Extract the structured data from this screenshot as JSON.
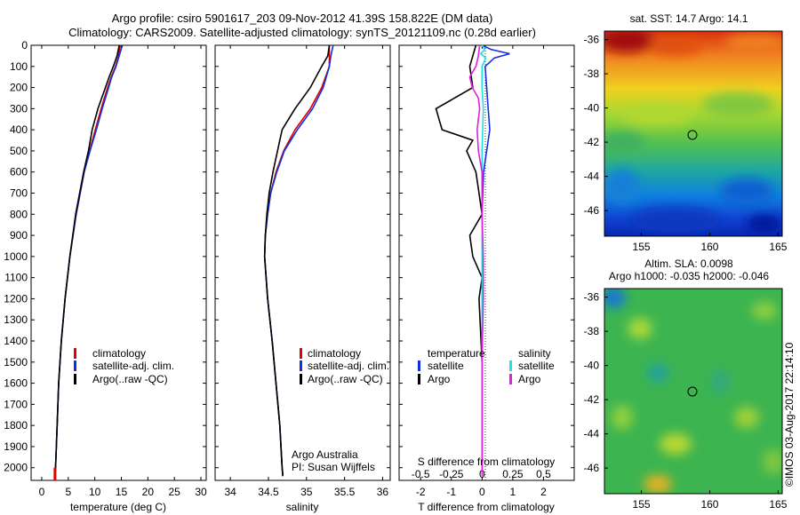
{
  "header": {
    "line1": "Argo profile: csiro 5901617_203 09-Nov-2012 41.39S 158.822E (DM data)",
    "line2": "Climatology: CARS2009. Satellite-adjusted climatology: synTS_20121109.nc (0.28d earlier)"
  },
  "colors": {
    "climatology": "#e00000",
    "satellite": "#1030e0",
    "argo": "#000000",
    "sal_satellite": "#20e0e0",
    "sal_argo": "#e020e0"
  },
  "chart_data": [
    {
      "type": "line",
      "panel": "temperature",
      "xlabel": "temperature (deg C)",
      "ylabel": "",
      "xlim": [
        -2,
        31
      ],
      "ylim": [
        2060,
        0
      ],
      "xticks": [
        "0",
        "5",
        "10",
        "15",
        "20",
        "25",
        "30"
      ],
      "yticks": [
        "0",
        "100",
        "200",
        "300",
        "400",
        "500",
        "600",
        "700",
        "800",
        "900",
        "1000",
        "1100",
        "1200",
        "1300",
        "1400",
        "1500",
        "1600",
        "1700",
        "1800",
        "1900",
        "2000"
      ],
      "legend": [
        "climatology",
        "satellite-adj. clim.",
        "Argo(..raw -QC)"
      ],
      "series": [
        {
          "name": "climatology",
          "color": "#e00000",
          "depth": [
            0,
            50,
            100,
            150,
            200,
            300,
            400,
            500,
            600,
            800,
            1000,
            1200,
            1400,
            1600,
            1800,
            2000,
            2040
          ],
          "values": [
            14.8,
            14.5,
            13.9,
            13.1,
            12.4,
            11.2,
            10.1,
            9.0,
            8.0,
            6.5,
            5.3,
            4.4,
            3.7,
            3.2,
            2.9,
            2.6,
            2.5
          ]
        },
        {
          "name": "satellite-adj. clim.",
          "color": "#1030e0",
          "depth": [
            0,
            50,
            100,
            150,
            200,
            300,
            400,
            500,
            600,
            800,
            1000,
            1200,
            1400,
            1600,
            1800,
            2000,
            2040
          ],
          "values": [
            15.2,
            14.6,
            14.0,
            13.2,
            12.6,
            11.4,
            10.3,
            9.1,
            8.0,
            6.5,
            5.3,
            4.4,
            3.7,
            3.2,
            2.9,
            2.6,
            2.5
          ]
        },
        {
          "name": "Argo(..raw -QC)",
          "color": "#000000",
          "depth": [
            0,
            50,
            100,
            150,
            200,
            300,
            400,
            500,
            600,
            800,
            1000,
            1200,
            1400,
            1600,
            1800,
            2000,
            2040
          ],
          "values": [
            14.6,
            14.2,
            13.5,
            12.7,
            12.0,
            10.6,
            9.5,
            8.8,
            7.9,
            6.4,
            5.3,
            4.4,
            3.7,
            3.2,
            2.9,
            2.6,
            2.5
          ]
        }
      ]
    },
    {
      "type": "line",
      "panel": "salinity",
      "xlabel": "salinity",
      "xlim": [
        33.8,
        36.1
      ],
      "ylim": [
        2060,
        0
      ],
      "xticks": [
        "34",
        "34.5",
        "35",
        "35.5",
        "36"
      ],
      "legend": [
        "climatology",
        "satellite-adj. clim.",
        "Argo(..raw -QC)"
      ],
      "annotation": [
        "Argo Australia",
        "PI: Susan Wijffels"
      ],
      "series": [
        {
          "name": "climatology",
          "color": "#e00000",
          "depth": [
            0,
            50,
            100,
            200,
            300,
            400,
            500,
            600,
            700,
            800,
            900,
            1000,
            1200,
            1400,
            1600,
            1800,
            2000,
            2040
          ],
          "values": [
            35.3,
            35.3,
            35.3,
            35.2,
            35.05,
            34.85,
            34.7,
            34.6,
            34.53,
            34.49,
            34.46,
            34.45,
            34.49,
            34.55,
            34.6,
            34.65,
            34.68,
            34.69
          ]
        },
        {
          "name": "satellite-adj. clim.",
          "color": "#1030e0",
          "depth": [
            0,
            50,
            100,
            200,
            300,
            400,
            500,
            600,
            700,
            800,
            900,
            1000,
            1200,
            1400,
            1600,
            1800,
            2000,
            2040
          ],
          "values": [
            35.35,
            35.32,
            35.3,
            35.22,
            35.08,
            34.88,
            34.71,
            34.61,
            34.53,
            34.49,
            34.46,
            34.45,
            34.49,
            34.55,
            34.6,
            34.65,
            34.68,
            34.69
          ]
        },
        {
          "name": "Argo(..raw -QC)",
          "color": "#000000",
          "depth": [
            0,
            50,
            100,
            200,
            300,
            400,
            500,
            600,
            700,
            800,
            900,
            1000,
            1200,
            1400,
            1600,
            1800,
            2000,
            2040
          ],
          "values": [
            35.3,
            35.28,
            35.2,
            35.05,
            34.85,
            34.68,
            34.62,
            34.56,
            34.51,
            34.48,
            34.46,
            34.45,
            34.49,
            34.55,
            34.6,
            34.65,
            34.68,
            34.69
          ]
        }
      ]
    },
    {
      "type": "line",
      "panel": "difference",
      "xlabel": "T difference from climatology",
      "x2label": "S difference from climatology",
      "xlim": [
        -2.7,
        3.0
      ],
      "x2lim": [
        -0.675,
        0.75
      ],
      "ylim": [
        2060,
        0
      ],
      "xticks": [
        "-2",
        "-1",
        "0",
        "1",
        "2"
      ],
      "x2ticks": [
        "-0.5",
        "-0.25",
        "0",
        "0.25",
        "0.5"
      ],
      "legend_title_t": "temperature",
      "legend_title_s": "salinity",
      "legend": [
        "satellite",
        "Argo",
        "satellite",
        "Argo"
      ],
      "series": [
        {
          "name": "satellite",
          "color": "#1030e0",
          "depth": [
            0,
            20,
            40,
            60,
            100,
            200,
            300,
            400,
            500,
            600,
            800,
            1000,
            1200,
            1500,
            1800,
            2040
          ],
          "values": [
            0.0,
            0.3,
            0.9,
            0.4,
            0.1,
            0.15,
            0.2,
            0.25,
            0.15,
            0.05,
            0.0,
            0.0,
            0.0,
            0.0,
            0.0,
            0.0
          ]
        },
        {
          "name": "Argo",
          "color": "#000000",
          "depth": [
            0,
            50,
            100,
            200,
            300,
            350,
            400,
            450,
            500,
            600,
            700,
            800,
            900,
            1000,
            1100,
            1200,
            1500,
            1800,
            2040
          ],
          "values": [
            -0.2,
            -0.3,
            -0.4,
            -0.3,
            -1.5,
            -1.4,
            -1.3,
            -0.3,
            -0.5,
            -0.2,
            -0.1,
            0.0,
            -0.4,
            -0.3,
            0.0,
            -0.1,
            0.0,
            0.0,
            0.0
          ]
        },
        {
          "name": "satellite",
          "color": "#20e0e0",
          "depth": [
            0,
            20,
            40,
            60,
            100,
            200,
            300,
            500,
            800,
            1000,
            1200,
            1500,
            1800,
            2040
          ],
          "values": [
            0.0,
            0.02,
            -0.01,
            0.03,
            0.0,
            0.0,
            0.01,
            0.0,
            0.0,
            0.0,
            0.0,
            0.0,
            0.0,
            0.0
          ]
        },
        {
          "name": "Argo",
          "color": "#e020e0",
          "depth": [
            0,
            50,
            100,
            150,
            200,
            250,
            300,
            400,
            500,
            600,
            800,
            1000,
            1200,
            1500,
            1800,
            2040
          ],
          "values": [
            -0.02,
            -0.03,
            -0.05,
            -0.1,
            -0.08,
            -0.03,
            -0.02,
            -0.04,
            -0.03,
            0.0,
            0.0,
            0.01,
            0.01,
            0.0,
            0.0,
            0.0
          ]
        }
      ]
    },
    {
      "type": "heatmap",
      "panel": "sst_map",
      "title": "sat. SST: 14.7 Argo: 14.1",
      "xticks": [
        "155",
        "160",
        "165"
      ],
      "yticks": [
        "-36",
        "-38",
        "-40",
        "-42",
        "-44",
        "-46"
      ],
      "xlim": [
        152.3,
        165.3
      ],
      "ylim": [
        -47.5,
        -35.5
      ],
      "argo_position": {
        "lon": 158.822,
        "lat": -41.39
      }
    },
    {
      "type": "heatmap",
      "panel": "sla_map",
      "title_line1": "Altim. SLA: 0.0098",
      "title_line2": "Argo h1000: -0.035 h2000: -0.046",
      "xticks": [
        "155",
        "160",
        "165"
      ],
      "yticks": [
        "-36",
        "-38",
        "-40",
        "-42",
        "-44",
        "-46"
      ],
      "xlim": [
        152.3,
        165.3
      ],
      "ylim": [
        -47.5,
        -35.5
      ],
      "argo_position": {
        "lon": 158.822,
        "lat": -41.39
      }
    }
  ],
  "credit": "©IMOS 03-Aug-2017 22:14:10"
}
